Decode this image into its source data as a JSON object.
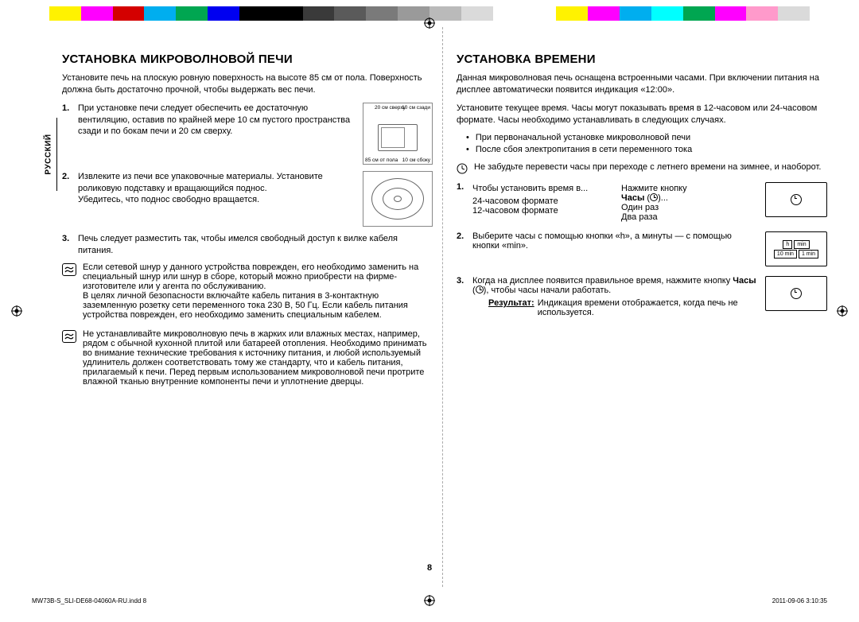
{
  "colorbar": [
    "#ffffff",
    "#fff200",
    "#ff00ff",
    "#d40000",
    "#00aeef",
    "#00a651",
    "#0000f0",
    "#000000",
    "#000000",
    "#3a3a3a",
    "#5a5a5a",
    "#7a7a7a",
    "#9a9a9a",
    "#bababa",
    "#dadada",
    "#ffffff",
    "#ffffff",
    "#fff200",
    "#ff00ff",
    "#00aeef",
    "#00ffff",
    "#00a651",
    "#ff00ff",
    "#ff9acb",
    "#dadada",
    "#ffffff"
  ],
  "side_label": "РУССКИЙ",
  "left": {
    "title": "УСТАНОВКА МИКРОВОЛНОВОЙ ПЕЧИ",
    "intro": "Установите печь на плоскую ровную поверхность на высоте 85 см от пола. Поверхность должна быть достаточно прочной, чтобы выдержать вес печи.",
    "steps": [
      "При установке печи следует обеспечить ее достаточную вентиляцию, оставив по крайней мере 10 см пустого пространства сзади и по бокам печи и 20 см сверху.",
      "Извлеките из печи все упаковочные материалы. Установите роликовую подставку и вращающийся поднос.\nУбедитесь, что поднос свободно вращается.",
      "Печь следует разместить так, чтобы имелся свободный доступ к вилке кабеля питания."
    ],
    "clearance": {
      "top": "20 см сверху",
      "rear": "10 см сзади",
      "floor": "85 см от пола",
      "side": "10 см сбоку"
    },
    "note1": "Если сетевой шнур у данного устройства поврежден, его необходимо заменить на специальный шнур или шнур в сборе, который можно приобрести на фирме-изготовителе или у агента по обслуживанию.\nВ целях личной безопасности включайте кабель питания в 3-контактную заземленную розетку сети переменного тока 230 В, 50 Гц. Если кабель питания устройства поврежден, его необходимо заменить специальным кабелем.",
    "note2": "Не устанавливайте микроволновую печь в жарких или влажных местах, например, рядом с обычной кухонной плитой или батареей отопления. Необходимо принимать во внимание технические требования к источнику питания, и любой используемый удлинитель должен соответствовать тому же стандарту, что и кабель питания, прилагаемый к печи. Перед первым использованием микроволновой печи протрите влажной тканью внутренние компоненты печи и уплотнение дверцы."
  },
  "right": {
    "title": "УСТАНОВКА ВРЕМЕНИ",
    "p1": "Данная микроволновая печь оснащена встроенными часами. При включении питания на дисплее автоматически появится индикация «12:00».",
    "p2": "Установите текущее время. Часы могут показывать время в 12-часовом или 24-часовом формате. Часы необходимо устанавливать в следующих случаях.",
    "bullets": [
      "При первоначальной установке микроволновой печи",
      "После сбоя электропитания в сети переменного тока"
    ],
    "clock_note": "Не забудьте перевести часы при переходе с летнего времени на зимнее, и наоборот.",
    "step1": {
      "leftcol": "Чтобы установить время в...",
      "leftcol2a": "24-часовом формате",
      "leftcol2b": "12-часовом формате",
      "rightcol": "Нажмите кнопку",
      "rightbold": "Часы",
      "right2a": "Один раз",
      "right2b": "Два раза"
    },
    "step2": "Выберите часы с помощью кнопки «h», а минуты — с помощью кнопки «min».",
    "step2_fig": {
      "h": "h",
      "min": "min",
      "h2": "10 min",
      "min2": "1 min"
    },
    "step3a": "Когда на дисплее появится правильное время, нажмите кнопку ",
    "step3bold": "Часы",
    "step3b": ", чтобы часы начали работать.",
    "result_label": "Результат:",
    "result_text": "Индикация времени отображается, когда печь не используется."
  },
  "page_num": "8",
  "footer": {
    "left": "MW73B-S_SLI-DE68-04060A-RU.indd   8",
    "right": "2011-09-06   3:10:35"
  }
}
